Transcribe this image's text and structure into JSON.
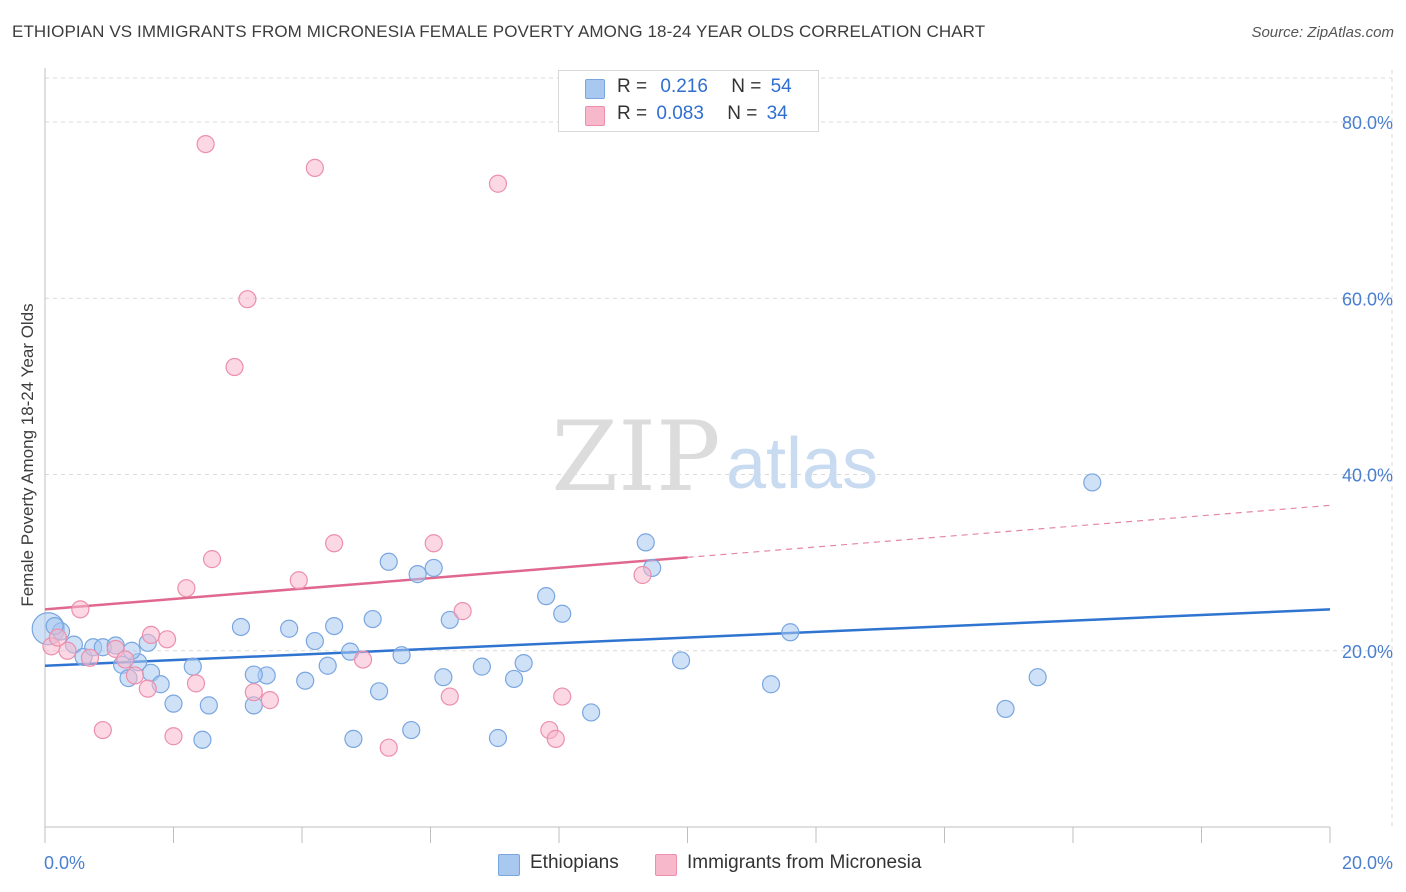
{
  "header": {
    "title": "ETHIOPIAN VS IMMIGRANTS FROM MICRONESIA FEMALE POVERTY AMONG 18-24 YEAR OLDS CORRELATION CHART",
    "source": "Source: ZipAtlas.com"
  },
  "legend": {
    "r_label": "R =",
    "n_label": "N =",
    "series1": {
      "r": "0.216",
      "n": "54"
    },
    "series2": {
      "r": "0.083",
      "n": "34"
    }
  },
  "bottom_legend": {
    "series1": "Ethiopians",
    "series2": "Immigrants from Micronesia"
  },
  "watermark": {
    "zip": "ZIP",
    "atlas": "atlas"
  },
  "colors": {
    "blue_fill": "#a8c8f0",
    "blue_stroke": "#7aa6e0",
    "blue_line": "#2f74d0",
    "pink_fill": "#f7b8cc",
    "pink_stroke": "#ec8fad",
    "pink_line": "#e0688f",
    "grid": "#d9d9d9",
    "tick_text": "#4a7fd0"
  },
  "chart_data": {
    "type": "scatter",
    "title": "ETHIOPIAN VS IMMIGRANTS FROM MICRONESIA FEMALE POVERTY AMONG 18-24 YEAR OLDS CORRELATION CHART",
    "xlabel": "",
    "ylabel": "Female Poverty Among 18-24 Year Olds",
    "xlim": [
      0,
      20
    ],
    "ylim": [
      0,
      85
    ],
    "x_tick_labels": [
      "0.0%",
      "20.0%"
    ],
    "y_ticks": [
      20,
      40,
      60,
      80
    ],
    "y_tick_labels": [
      "20.0%",
      "40.0%",
      "60.0%",
      "80.0%"
    ],
    "grid": true,
    "series": [
      {
        "name": "Ethiopians",
        "r": 0.216,
        "n": 54,
        "trend": {
          "x0": 0,
          "y0": 18.3,
          "x1": 20,
          "y1": 24.7,
          "dashed_after": null
        },
        "points": [
          [
            0.05,
            22.5,
            "large"
          ],
          [
            0.25,
            22.2
          ],
          [
            0.45,
            20.7
          ],
          [
            0.6,
            19.3
          ],
          [
            0.75,
            20.4
          ],
          [
            0.9,
            20.4
          ],
          [
            1.1,
            20.6
          ],
          [
            1.6,
            20.9
          ],
          [
            1.45,
            18.7
          ],
          [
            1.2,
            18.4
          ],
          [
            1.3,
            16.9
          ],
          [
            1.65,
            17.5
          ],
          [
            1.8,
            16.2
          ],
          [
            2.0,
            14.0
          ],
          [
            2.3,
            18.2
          ],
          [
            2.55,
            13.8
          ],
          [
            2.45,
            9.9
          ],
          [
            3.25,
            13.8
          ],
          [
            3.05,
            22.7
          ],
          [
            3.45,
            17.2
          ],
          [
            3.25,
            17.3
          ],
          [
            4.05,
            16.6
          ],
          [
            3.8,
            22.5
          ],
          [
            4.2,
            21.1
          ],
          [
            4.4,
            18.3
          ],
          [
            4.5,
            22.8
          ],
          [
            4.75,
            19.9
          ],
          [
            4.8,
            10.0
          ],
          [
            5.1,
            23.6
          ],
          [
            5.2,
            15.4
          ],
          [
            5.35,
            30.1
          ],
          [
            5.55,
            19.5
          ],
          [
            5.7,
            11.0
          ],
          [
            5.8,
            28.7
          ],
          [
            6.05,
            29.4
          ],
          [
            6.2,
            17.0
          ],
          [
            6.3,
            23.5
          ],
          [
            6.8,
            18.2
          ],
          [
            7.05,
            10.1
          ],
          [
            7.3,
            16.8
          ],
          [
            7.45,
            18.6
          ],
          [
            7.8,
            26.2
          ],
          [
            8.05,
            24.2
          ],
          [
            8.5,
            13.0
          ],
          [
            9.35,
            32.3
          ],
          [
            9.45,
            29.4
          ],
          [
            9.9,
            18.9
          ],
          [
            11.3,
            16.2
          ],
          [
            11.6,
            22.1
          ],
          [
            14.95,
            13.4
          ],
          [
            15.45,
            17.0
          ],
          [
            16.3,
            39.1
          ],
          [
            1.35,
            20.0
          ],
          [
            0.15,
            22.8
          ]
        ]
      },
      {
        "name": "Immigrants from Micronesia",
        "r": 0.083,
        "n": 34,
        "trend": {
          "x0": 0,
          "y0": 24.7,
          "x1": 10,
          "y1": 30.6,
          "dashed_to": {
            "x": 20,
            "y": 36.5
          }
        },
        "points": [
          [
            0.55,
            24.7
          ],
          [
            0.35,
            20.0
          ],
          [
            0.7,
            19.2
          ],
          [
            0.9,
            11.0
          ],
          [
            1.1,
            20.2
          ],
          [
            1.25,
            19.0
          ],
          [
            1.4,
            17.2
          ],
          [
            1.6,
            15.7
          ],
          [
            1.65,
            21.8
          ],
          [
            1.9,
            21.3
          ],
          [
            2.0,
            10.3
          ],
          [
            2.2,
            27.1
          ],
          [
            2.35,
            16.3
          ],
          [
            2.6,
            30.4
          ],
          [
            2.5,
            77.5
          ],
          [
            2.95,
            52.2
          ],
          [
            3.15,
            59.9
          ],
          [
            3.25,
            15.3
          ],
          [
            3.5,
            14.4
          ],
          [
            3.95,
            28.0
          ],
          [
            4.2,
            74.8
          ],
          [
            4.5,
            32.2
          ],
          [
            4.95,
            19.0
          ],
          [
            5.35,
            9.0
          ],
          [
            6.05,
            32.2
          ],
          [
            6.3,
            14.8
          ],
          [
            6.5,
            24.5
          ],
          [
            7.05,
            73.0
          ],
          [
            7.85,
            11.0
          ],
          [
            7.95,
            10.0
          ],
          [
            8.05,
            14.8
          ],
          [
            9.3,
            28.6
          ],
          [
            0.1,
            20.5
          ],
          [
            0.2,
            21.5
          ]
        ]
      }
    ]
  }
}
